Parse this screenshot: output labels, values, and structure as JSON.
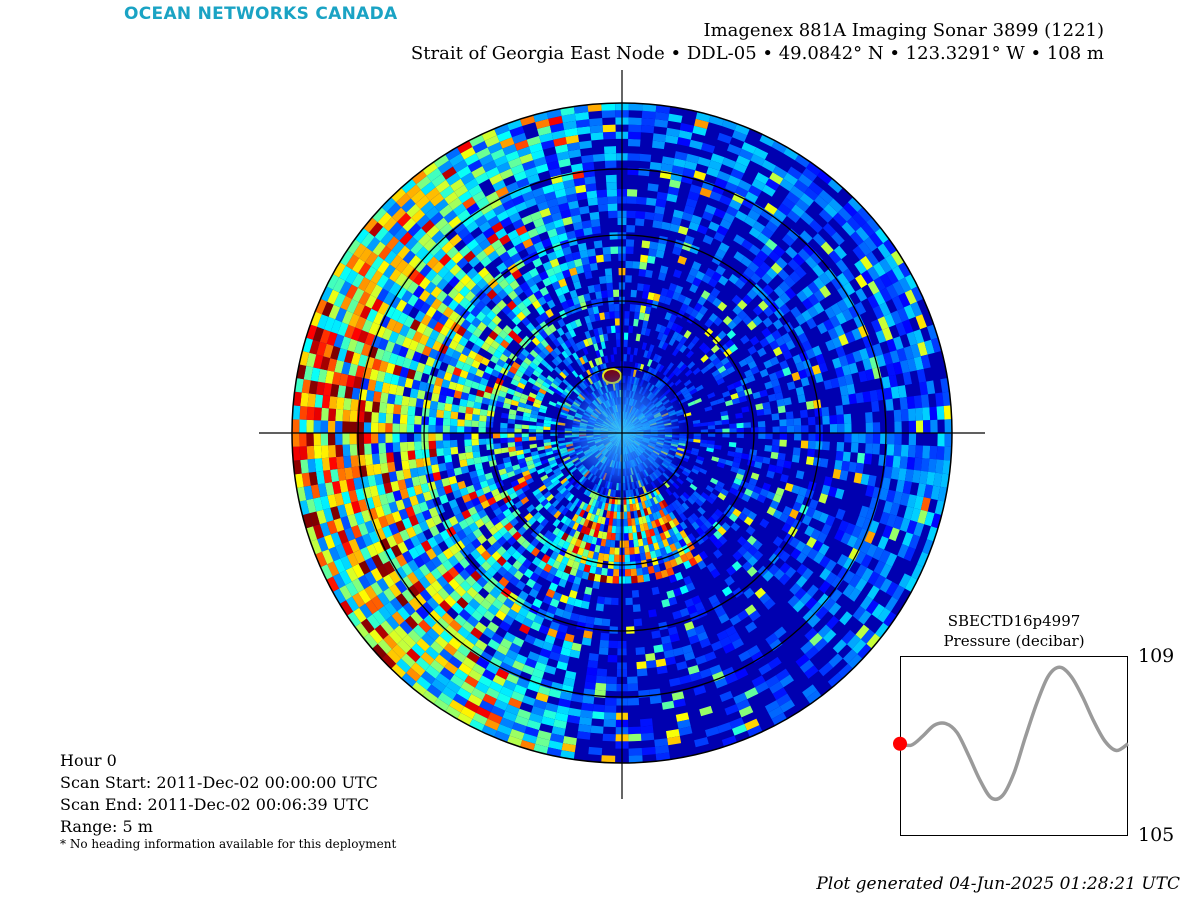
{
  "brand": "OCEAN NETWORKS CANADA",
  "title_line1": "Imagenex 881A Imaging Sonar 3899 (1221)",
  "title_line2": "Strait of Georgia East Node • DDL-05 • 49.0842° N • 123.3291° W • 108 m",
  "info": {
    "hour": "Hour 0",
    "scan_start": "Scan Start: 2011-Dec-02 00:00:00 UTC",
    "scan_end": "Scan End: 2011-Dec-02 00:06:39 UTC",
    "range": "Range: 5 m",
    "note": "* No heading information available for this deployment"
  },
  "generated": "Plot generated 04-Jun-2025 01:28:21 UTC",
  "colors": {
    "brand": "#1aa3c4",
    "sonar_background": "#00008f",
    "trace": "#9a9a9a",
    "marker": "#ff0000"
  },
  "sonar": {
    "type": "polar_sonar_image",
    "colormap": "jet",
    "range_m": 5,
    "rings": 5
  },
  "chart_data": {
    "type": "line",
    "title": "SBECTD16p4997",
    "ylabel": "Pressure (decibar)",
    "ylim": [
      105,
      109
    ],
    "yticks": [
      "109",
      "105"
    ],
    "x": [
      0,
      0.05,
      0.1,
      0.15,
      0.2,
      0.25,
      0.3,
      0.35,
      0.4,
      0.45,
      0.5,
      0.55,
      0.6,
      0.65,
      0.7,
      0.75,
      0.8,
      0.85,
      0.9,
      0.95,
      1.0
    ],
    "values": [
      107.05,
      107.02,
      107.22,
      107.46,
      107.5,
      107.3,
      106.8,
      106.25,
      105.85,
      105.9,
      106.4,
      107.2,
      107.95,
      108.55,
      108.75,
      108.55,
      108.1,
      107.55,
      107.1,
      106.9,
      107.05
    ],
    "current_index": 0,
    "current_value": 107.05
  }
}
